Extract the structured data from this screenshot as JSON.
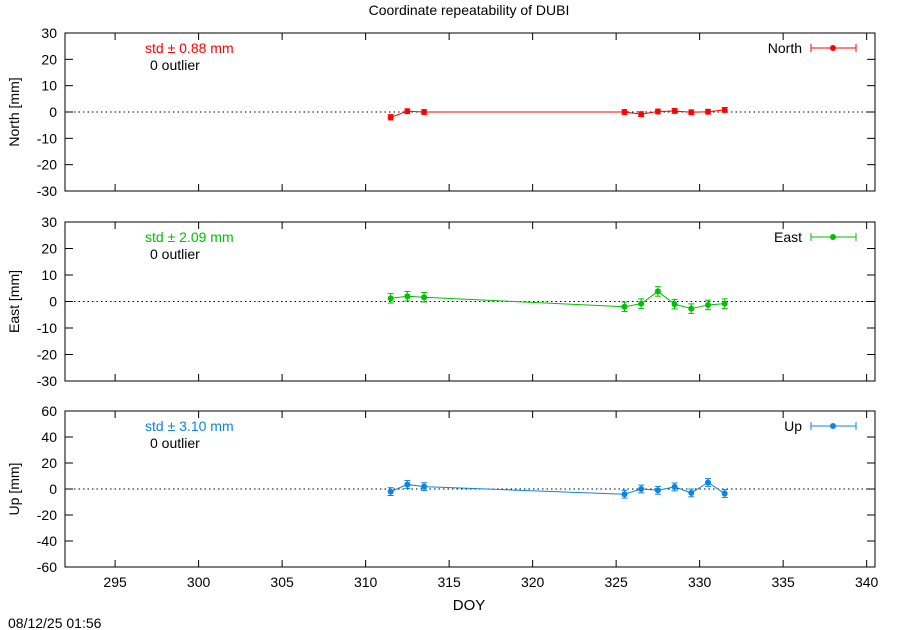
{
  "title": "Coordinate repeatability of DUBI",
  "timestamp": "08/12/25 01:56",
  "chart_data": [
    {
      "type": "line",
      "panel": "north",
      "title": "Coordinate repeatability of DUBI",
      "xlabel": "",
      "ylabel": "North [mm]",
      "xlim": [
        292,
        340.5
      ],
      "ylim": [
        -30,
        30
      ],
      "yticks": [
        -30,
        -20,
        -10,
        0,
        10,
        20,
        30
      ],
      "ytick_labels": [
        "-30",
        "-20",
        "-10",
        "0",
        "10",
        "20",
        "30"
      ],
      "color": "#ff0000",
      "legend_position": "top-right",
      "std_label": "std ± 0.88 mm",
      "outlier_label": "0 outlier",
      "series": [
        {
          "name": "North",
          "x": [
            311.5,
            312.5,
            313.5,
            325.5,
            326.5,
            327.5,
            328.5,
            329.5,
            330.5,
            331.5
          ],
          "y": [
            -2.0,
            0.3,
            0.0,
            0.0,
            -0.8,
            0.2,
            0.4,
            -0.1,
            0.1,
            0.8
          ],
          "err": [
            1.0,
            0.9,
            0.9,
            0.9,
            0.9,
            0.9,
            0.9,
            0.9,
            0.9,
            0.9
          ]
        }
      ]
    },
    {
      "type": "line",
      "panel": "east",
      "xlabel": "",
      "ylabel": "East [mm]",
      "xlim": [
        292,
        340.5
      ],
      "ylim": [
        -30,
        30
      ],
      "yticks": [
        -30,
        -20,
        -10,
        0,
        10,
        20,
        30
      ],
      "ytick_labels": [
        "-30",
        "-20",
        "-10",
        "0",
        "10",
        "20",
        "30"
      ],
      "color": "#00c000",
      "legend_position": "top-right",
      "std_label": "std ± 2.09 mm",
      "outlier_label": "0 outlier",
      "series": [
        {
          "name": "East",
          "x": [
            311.5,
            312.5,
            313.5,
            325.5,
            326.5,
            327.5,
            328.5,
            329.5,
            330.5,
            331.5
          ],
          "y": [
            1.2,
            2.0,
            1.6,
            -2.0,
            -0.8,
            3.8,
            -1.0,
            -2.7,
            -1.3,
            -0.8
          ],
          "err": [
            1.8,
            1.8,
            1.8,
            1.8,
            1.8,
            1.8,
            1.8,
            1.8,
            1.8,
            1.8
          ]
        }
      ]
    },
    {
      "type": "line",
      "panel": "up",
      "xlabel": "DOY",
      "ylabel": "Up [mm]",
      "xlim": [
        292,
        340.5
      ],
      "ylim": [
        -60,
        60
      ],
      "yticks": [
        -60,
        -40,
        -20,
        0,
        20,
        40,
        60
      ],
      "ytick_labels": [
        "-60",
        "-40",
        "-20",
        "0",
        "20",
        "40",
        "60"
      ],
      "xticks": [
        295,
        300,
        305,
        310,
        315,
        320,
        325,
        330,
        335,
        340
      ],
      "xtick_labels": [
        "295",
        "300",
        "305",
        "310",
        "315",
        "320",
        "325",
        "330",
        "335",
        "340"
      ],
      "color": "#0a84e6",
      "legend_position": "top-right",
      "std_label": "std ± 3.10 mm",
      "outlier_label": "0 outlier",
      "series": [
        {
          "name": "Up",
          "x": [
            311.5,
            312.5,
            313.5,
            325.5,
            326.5,
            327.5,
            328.5,
            329.5,
            330.5,
            331.5
          ],
          "y": [
            -2.0,
            3.5,
            1.8,
            -4.0,
            0.0,
            -1.0,
            1.6,
            -3.0,
            5.0,
            -3.5
          ],
          "err": [
            3.0,
            3.0,
            3.0,
            3.0,
            3.0,
            3.0,
            3.0,
            3.0,
            3.0,
            3.0
          ]
        }
      ]
    }
  ]
}
